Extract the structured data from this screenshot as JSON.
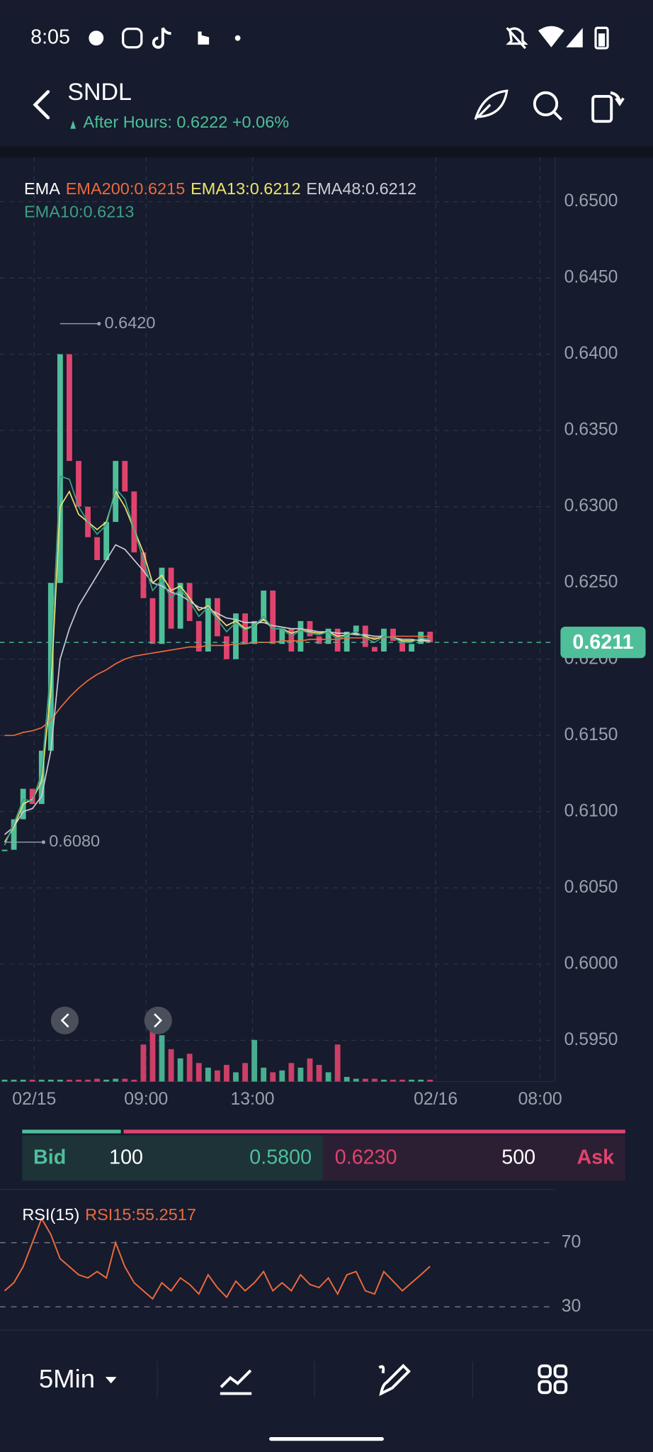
{
  "status_bar": {
    "time": "8:05"
  },
  "header": {
    "symbol": "SNDL",
    "after_hours": "After Hours: 0.6222 +0.06%"
  },
  "chart_data": [
    {
      "type": "candlestick",
      "legend_title": "EMA",
      "values": [
        0.6075,
        0.6095,
        0.6115,
        0.6105,
        0.614,
        0.625,
        0.64,
        0.633,
        0.63,
        0.628,
        0.6265,
        0.629,
        0.633,
        0.631,
        0.627,
        0.624,
        0.621,
        0.626,
        0.622,
        0.625,
        0.6225,
        0.6205,
        0.624,
        0.6215,
        0.62,
        0.623,
        0.621,
        0.6225,
        0.6245,
        0.621,
        0.622,
        0.6205,
        0.6225,
        0.6215,
        0.621,
        0.622,
        0.6205,
        0.6218,
        0.6222,
        0.6208,
        0.6205,
        0.622,
        0.6212,
        0.6205,
        0.621,
        0.6218,
        0.6211
      ],
      "up_color": "#4fbf9a",
      "down_color": "#e0446e",
      "series": [
        {
          "name": "EMA200:0.6215",
          "color": "#ec6a3c",
          "values": [
            0.615,
            0.615,
            0.6152,
            0.6153,
            0.6155,
            0.616,
            0.6168,
            0.6175,
            0.6181,
            0.6186,
            0.619,
            0.6193,
            0.6197,
            0.62,
            0.6202,
            0.6203,
            0.6204,
            0.6205,
            0.6206,
            0.6207,
            0.6208,
            0.6208,
            0.6209,
            0.6209,
            0.6209,
            0.621,
            0.621,
            0.6211,
            0.6211,
            0.6211,
            0.6212,
            0.6212,
            0.6212,
            0.6213,
            0.6213,
            0.6213,
            0.6213,
            0.6214,
            0.6214,
            0.6214,
            0.6214,
            0.6214,
            0.6215,
            0.6215,
            0.6215,
            0.6215,
            0.6215
          ]
        },
        {
          "name": "EMA13:0.6212",
          "color": "#ece46c",
          "values": [
            0.608,
            0.609,
            0.6105,
            0.6108,
            0.612,
            0.618,
            0.63,
            0.631,
            0.6295,
            0.629,
            0.6285,
            0.629,
            0.631,
            0.63,
            0.6285,
            0.627,
            0.625,
            0.6255,
            0.6245,
            0.6248,
            0.624,
            0.6232,
            0.6235,
            0.6228,
            0.6222,
            0.6225,
            0.622,
            0.6222,
            0.6226,
            0.622,
            0.622,
            0.6217,
            0.6219,
            0.6218,
            0.6217,
            0.6218,
            0.6215,
            0.6216,
            0.6217,
            0.6215,
            0.6213,
            0.6215,
            0.6214,
            0.6212,
            0.6212,
            0.6213,
            0.6212
          ]
        },
        {
          "name": "EMA48:0.6212",
          "color": "#c9ccd4",
          "values": [
            0.6085,
            0.609,
            0.61,
            0.6102,
            0.611,
            0.614,
            0.62,
            0.622,
            0.6235,
            0.6245,
            0.6255,
            0.6265,
            0.6275,
            0.6272,
            0.6265,
            0.6258,
            0.625,
            0.6248,
            0.6244,
            0.6242,
            0.6238,
            0.6234,
            0.6233,
            0.623,
            0.6227,
            0.6226,
            0.6224,
            0.6224,
            0.6224,
            0.6222,
            0.6221,
            0.622,
            0.622,
            0.6219,
            0.6218,
            0.6218,
            0.6217,
            0.6217,
            0.6216,
            0.6216,
            0.6215,
            0.6215,
            0.6214,
            0.6213,
            0.6213,
            0.6212,
            0.6212
          ]
        },
        {
          "name": "EMA10:0.6213",
          "color": "#3d9f86",
          "values": [
            0.6078,
            0.6092,
            0.6108,
            0.6107,
            0.6125,
            0.6195,
            0.632,
            0.6318,
            0.63,
            0.629,
            0.6282,
            0.6288,
            0.6312,
            0.6305,
            0.6285,
            0.6265,
            0.6245,
            0.6252,
            0.624,
            0.6246,
            0.6238,
            0.6228,
            0.6234,
            0.6226,
            0.6218,
            0.6224,
            0.6219,
            0.6222,
            0.6228,
            0.622,
            0.622,
            0.6215,
            0.6219,
            0.6217,
            0.6216,
            0.6218,
            0.6213,
            0.6216,
            0.6218,
            0.6214,
            0.6211,
            0.6215,
            0.6214,
            0.6211,
            0.6211,
            0.6214,
            0.6213
          ]
        }
      ],
      "volume": {
        "values": [
          2,
          2,
          2,
          2,
          2,
          2,
          2,
          2,
          2,
          2,
          3,
          2,
          3,
          3,
          2,
          40,
          70,
          50,
          35,
          25,
          30,
          20,
          15,
          12,
          18,
          10,
          20,
          45,
          15,
          10,
          12,
          20,
          15,
          25,
          18,
          10,
          40,
          5,
          3,
          3,
          3,
          2,
          2,
          2,
          2,
          2,
          2
        ],
        "ylim": [
          0,
          80
        ]
      },
      "annotations": [
        {
          "value": 0.642,
          "label": "0.6420",
          "x": 6
        },
        {
          "value": 0.608,
          "label": "0.6080",
          "x": 0
        }
      ],
      "last_price": 0.6211,
      "last_price_color": "#4fbf9a",
      "xlim": [
        -0.5,
        59.5
      ],
      "xticks": [
        {
          "value": 3.2,
          "label": "02/15"
        },
        {
          "value": 15.3,
          "label": "09:00"
        },
        {
          "value": 26.8,
          "label": "13:00"
        },
        {
          "value": 46.6,
          "label": "02/16"
        },
        {
          "value": 57.9,
          "label": "08:00"
        }
      ],
      "ylim": [
        0.5923,
        0.6529
      ],
      "yticks": [
        {
          "value": 0.65,
          "label": "0.6500"
        },
        {
          "value": 0.645,
          "label": "0.6450"
        },
        {
          "value": 0.64,
          "label": "0.6400"
        },
        {
          "value": 0.635,
          "label": "0.6350"
        },
        {
          "value": 0.63,
          "label": "0.6300"
        },
        {
          "value": 0.625,
          "label": "0.6250"
        },
        {
          "value": 0.62,
          "label": "0.6200"
        },
        {
          "value": 0.615,
          "label": "0.6150"
        },
        {
          "value": 0.61,
          "label": "0.6100"
        },
        {
          "value": 0.605,
          "label": "0.6050"
        },
        {
          "value": 0.6,
          "label": "0.6000"
        },
        {
          "value": 0.595,
          "label": "0.5950"
        }
      ],
      "grid": true
    },
    {
      "type": "line",
      "title": "RSI(15)",
      "series": [
        {
          "name": "RSI15:55.2517",
          "color": "#ec6a3c",
          "values": [
            40,
            45,
            55,
            70,
            85,
            75,
            60,
            55,
            50,
            48,
            52,
            48,
            70,
            55,
            45,
            40,
            35,
            45,
            40,
            48,
            44,
            38,
            50,
            42,
            36,
            46,
            40,
            45,
            52,
            40,
            45,
            40,
            50,
            44,
            42,
            48,
            38,
            50,
            52,
            40,
            38,
            52,
            46,
            40,
            45,
            50,
            55.25
          ]
        }
      ],
      "xlim": [
        -0.5,
        59.5
      ],
      "ylim": [
        25,
        100
      ],
      "yticks": [
        30,
        70
      ],
      "grid": true
    }
  ],
  "order_book": {
    "bid_label": "Bid",
    "bid_size": 100,
    "bid_price": "0.5800",
    "ask_price": "0.6230",
    "ask_size": 500,
    "ask_label": "Ask"
  },
  "bottom_nav": {
    "interval": "5Min"
  }
}
